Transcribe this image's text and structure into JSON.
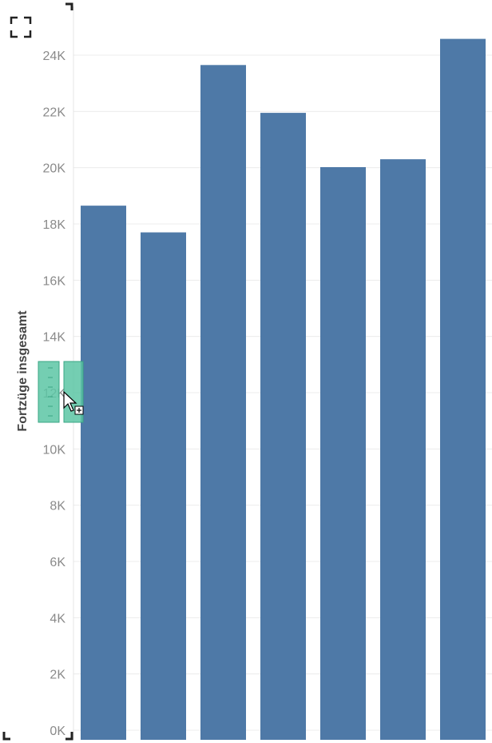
{
  "colors": {
    "bar": "#4e79a7",
    "handle": "#5cc5a5",
    "handle_border": "#3aa584"
  },
  "toolbar": {
    "fullscreen_icon": "fullscreen-icon"
  },
  "chart_data": {
    "type": "bar",
    "categories": [
      "",
      "",
      "",
      "",
      "",
      "",
      ""
    ],
    "values": [
      18650,
      17700,
      23650,
      21950,
      20020,
      20300,
      24580
    ],
    "ylabel": "Fortzüge insgesamt",
    "ylim": [
      0,
      25500
    ],
    "yticks": [
      0,
      2000,
      4000,
      6000,
      8000,
      10000,
      12000,
      14000,
      16000,
      18000,
      20000,
      22000,
      24000
    ],
    "ytick_labels": [
      "0K",
      "2K",
      "4K",
      "6K",
      "8K",
      "10K",
      "12K",
      "14K",
      "16K",
      "18K",
      "20K",
      "22K",
      "24K"
    ],
    "grid": true
  },
  "overlay": {
    "drag_handle_icon": "drag-handle-icon",
    "cursor_icon": "cursor-add-icon"
  }
}
